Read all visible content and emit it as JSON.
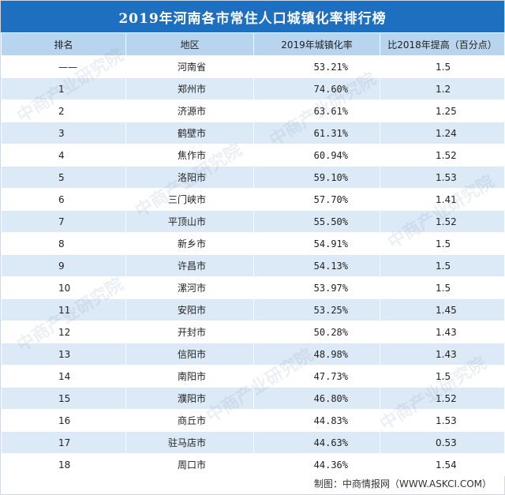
{
  "title": "2019年河南各市常住人口城镇化率排行榜",
  "headers": [
    "排名",
    "地区",
    "2019年城镇化率",
    "比2018年提高（百分点）"
  ],
  "rows": [
    {
      "rank": "——",
      "region": "河南省",
      "rate": "53.21%",
      "rise": "1.5"
    },
    {
      "rank": "1",
      "region": "郑州市",
      "rate": "74.60%",
      "rise": "1.2"
    },
    {
      "rank": "2",
      "region": "济源市",
      "rate": "63.61%",
      "rise": "1.25"
    },
    {
      "rank": "3",
      "region": "鹤壁市",
      "rate": "61.31%",
      "rise": "1.24"
    },
    {
      "rank": "4",
      "region": "焦作市",
      "rate": "60.94%",
      "rise": "1.52"
    },
    {
      "rank": "5",
      "region": "洛阳市",
      "rate": "59.10%",
      "rise": "1.53"
    },
    {
      "rank": "6",
      "region": "三门峡市",
      "rate": "57.70%",
      "rise": "1.41"
    },
    {
      "rank": "7",
      "region": "平顶山市",
      "rate": "55.50%",
      "rise": "1.52"
    },
    {
      "rank": "8",
      "region": "新乡市",
      "rate": "54.91%",
      "rise": "1.5"
    },
    {
      "rank": "9",
      "region": "许昌市",
      "rate": "54.13%",
      "rise": "1.5"
    },
    {
      "rank": "10",
      "region": "漯河市",
      "rate": "53.97%",
      "rise": "1.5"
    },
    {
      "rank": "11",
      "region": "安阳市",
      "rate": "53.25%",
      "rise": "1.45"
    },
    {
      "rank": "12",
      "region": "开封市",
      "rate": "50.28%",
      "rise": "1.43"
    },
    {
      "rank": "13",
      "region": "信阳市",
      "rate": "48.98%",
      "rise": "1.43"
    },
    {
      "rank": "14",
      "region": "南阳市",
      "rate": "47.73%",
      "rise": "1.5"
    },
    {
      "rank": "15",
      "region": "濮阳市",
      "rate": "46.80%",
      "rise": "1.52"
    },
    {
      "rank": "16",
      "region": "商丘市",
      "rate": "44.83%",
      "rise": "1.53"
    },
    {
      "rank": "17",
      "region": "驻马店市",
      "rate": "44.63%",
      "rise": "0.53"
    },
    {
      "rank": "18",
      "region": "周口市",
      "rate": "44.36%",
      "rise": "1.54"
    }
  ],
  "footer": "制图：中商情报网（WWW.ASKCI.COM）",
  "watermark": "中商产业研究院",
  "colors": {
    "title_bg": "#1f6fc0",
    "header_bg": "#b8d4ee",
    "stripe": "#dce9f6"
  }
}
